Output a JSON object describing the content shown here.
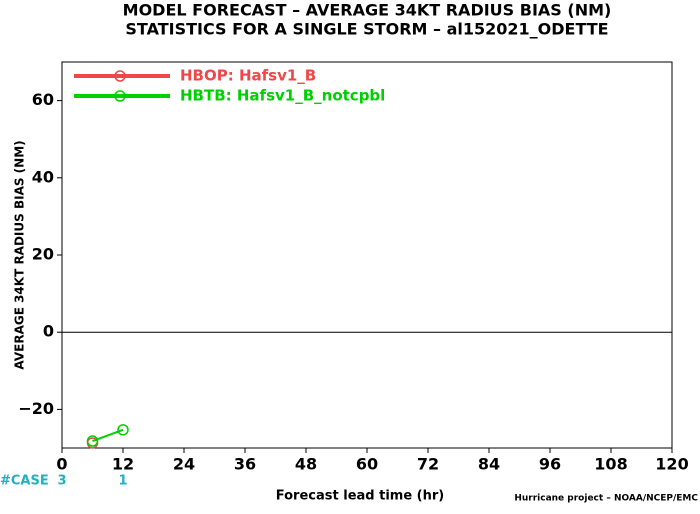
{
  "chart_data": {
    "type": "line",
    "title": "MODEL FORECAST – AVERAGE 34KT RADIUS BIAS (NM)",
    "subtitle": "STATISTICS FOR A SINGLE STORM – al152021_ODETTE",
    "y_label": "AVERAGE 34KT RADIUS BIAS (NM)",
    "x_label": "Forecast lead time (hr)",
    "credit": "Hurricane project – NOAA/NCEP/EMC",
    "x": [
      6,
      12
    ],
    "series": [
      {
        "name": "HBOP: Hafsv1_B",
        "color": "#f04848",
        "values": [
          -28.7,
          null
        ]
      },
      {
        "name": "HBTB: Hafsv1_B_notcpbl",
        "color": "#00d000",
        "values": [
          -28.2,
          -25.3
        ]
      }
    ],
    "cases": {
      "label": "#CASE",
      "x": [
        0,
        12
      ],
      "values": [
        3,
        1
      ]
    },
    "hline": 0,
    "xlim": [
      0,
      120
    ],
    "xticks": [
      0,
      12,
      24,
      36,
      48,
      60,
      72,
      84,
      96,
      108,
      120
    ],
    "ylim": [
      -30,
      70
    ],
    "yticks": [
      {
        "value": -20,
        "label": "−20"
      },
      0,
      20,
      40,
      60
    ],
    "legend": "upper left"
  }
}
